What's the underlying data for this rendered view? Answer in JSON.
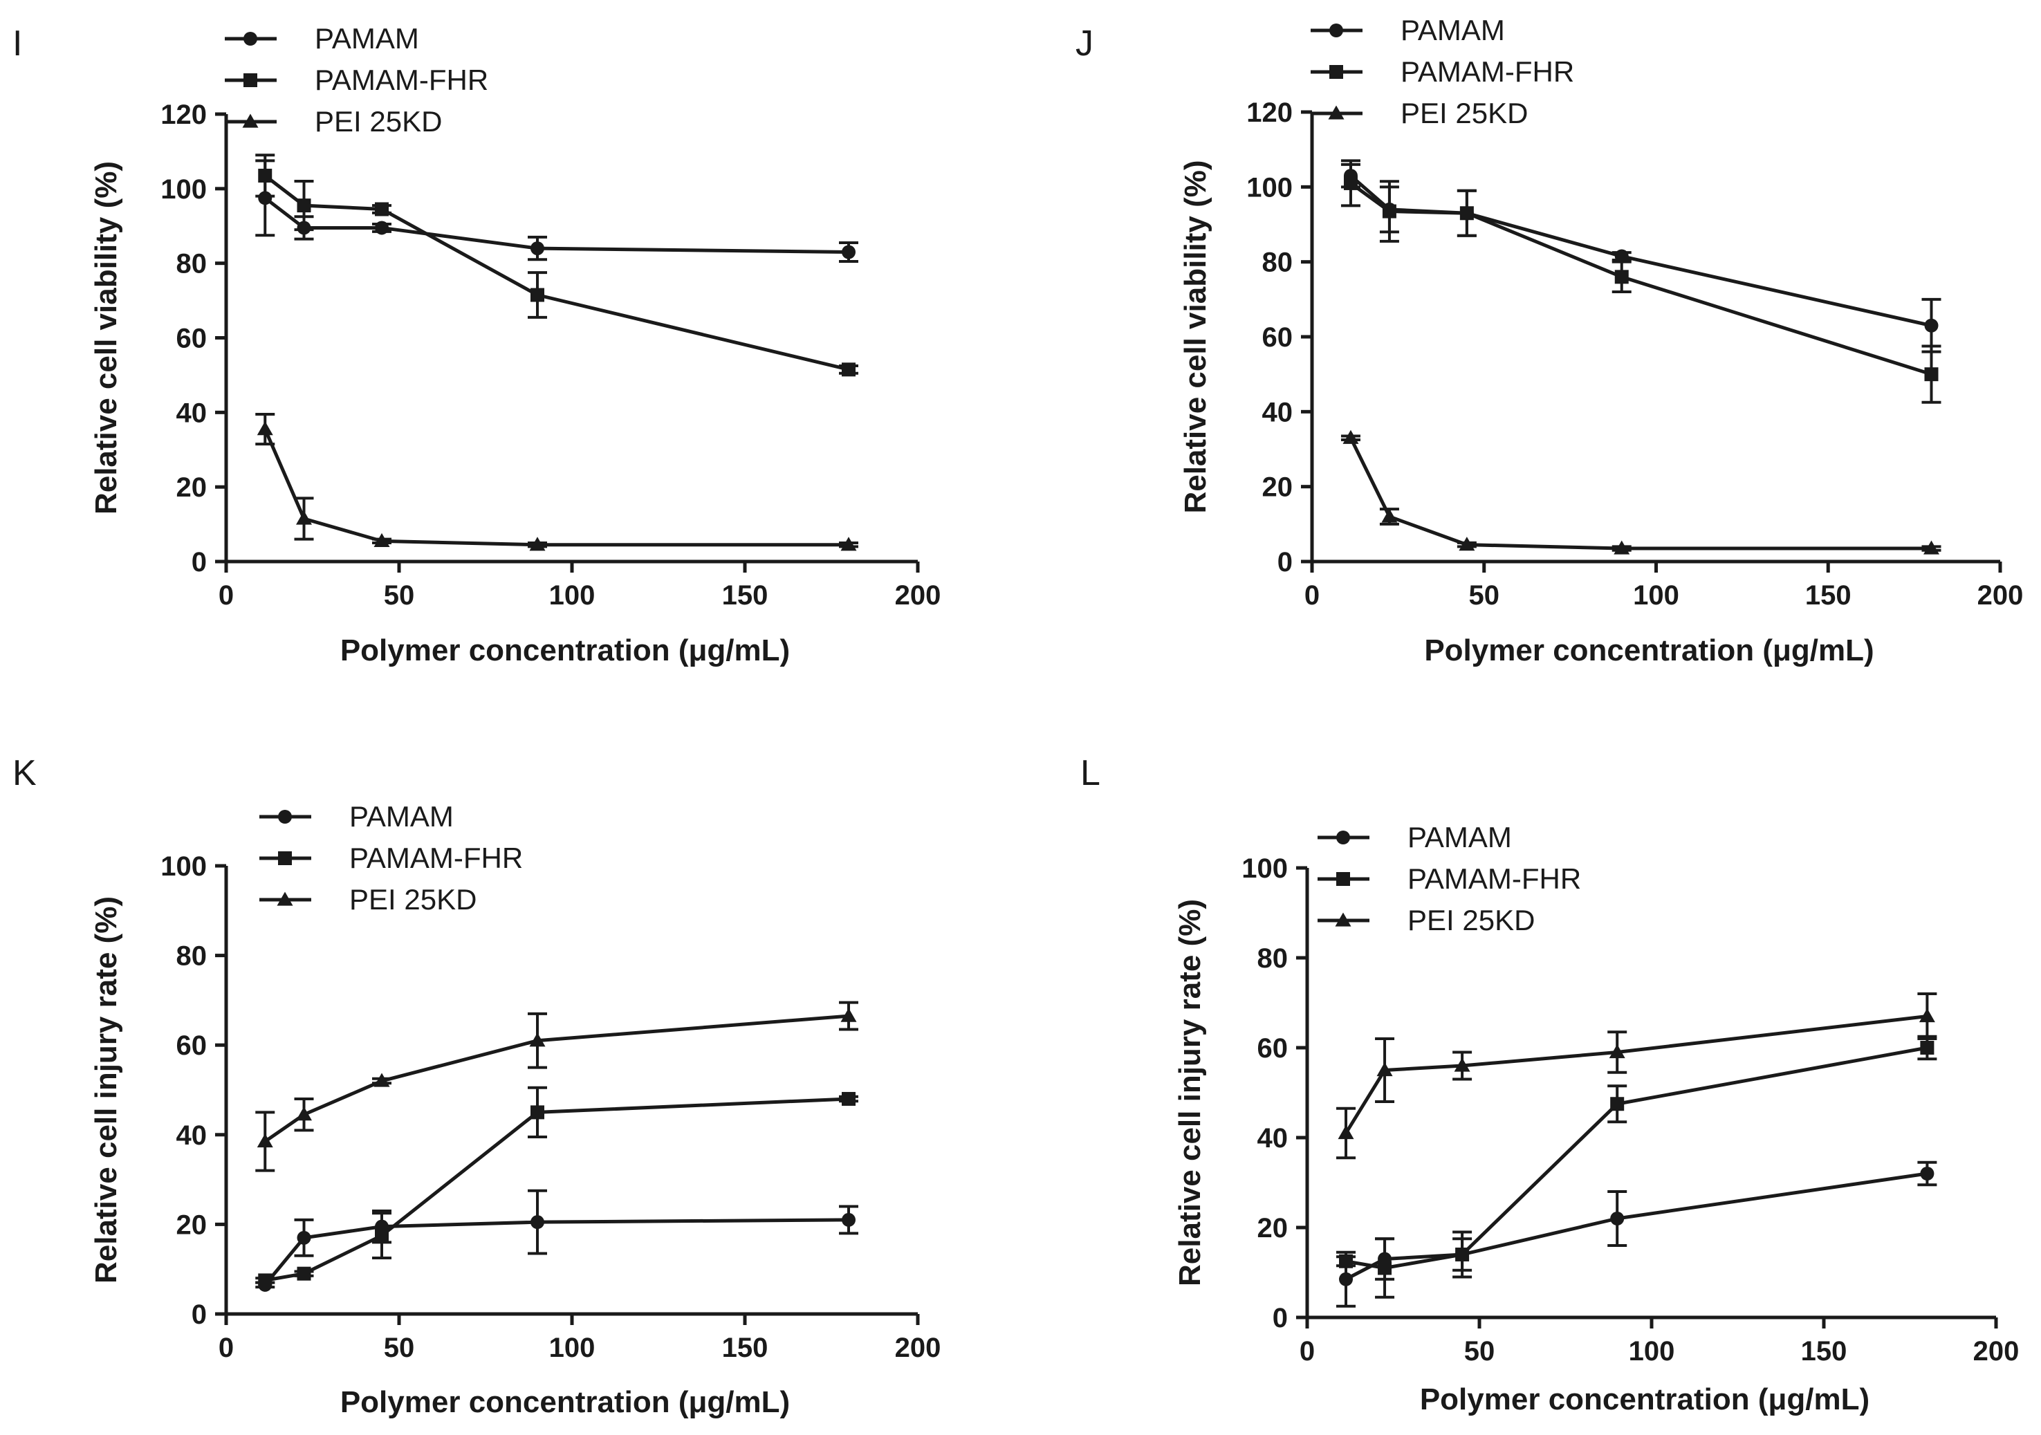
{
  "chart_data": [
    {
      "type": "line",
      "panel": "I",
      "xlabel": "Polymer concentration (μg/mL)",
      "ylabel": "Relative cell viability (%)",
      "xlim": [
        0,
        200
      ],
      "ylim": [
        0,
        120
      ],
      "xticks": [
        "0",
        "50",
        "100",
        "150",
        "200"
      ],
      "yticks": [
        "0",
        "20",
        "40",
        "60",
        "80",
        "100",
        "120"
      ],
      "legend_position": "top-left",
      "x": [
        11.25,
        22.5,
        45,
        90,
        180
      ],
      "series": [
        {
          "name": "PAMAM",
          "marker": "circle",
          "values": [
            97.5,
            89.5,
            89.5,
            84,
            83
          ],
          "errors": [
            10,
            3,
            1,
            3,
            2.5
          ]
        },
        {
          "name": "PAMAM-FHR",
          "marker": "square",
          "values": [
            103.5,
            95.5,
            94.5,
            71.5,
            51.5
          ],
          "errors": [
            5.5,
            6.5,
            1,
            6,
            1
          ]
        },
        {
          "name": "PEI 25KD",
          "marker": "triangle",
          "values": [
            35.5,
            11.5,
            5.5,
            4.5,
            4.5
          ],
          "errors": [
            4,
            5.5,
            0.5,
            0.5,
            0.5
          ]
        }
      ]
    },
    {
      "type": "line",
      "panel": "J",
      "xlabel": "Polymer concentration (μg/mL)",
      "ylabel": "Relative cell viability (%)",
      "xlim": [
        0,
        200
      ],
      "ylim": [
        0,
        120
      ],
      "xticks": [
        "0",
        "50",
        "100",
        "150",
        "200"
      ],
      "yticks": [
        "0",
        "20",
        "40",
        "60",
        "80",
        "100",
        "120"
      ],
      "legend_position": "top-left",
      "x": [
        11.25,
        22.5,
        45,
        90,
        180
      ],
      "series": [
        {
          "name": "PAMAM",
          "marker": "circle",
          "values": [
            103,
            94,
            93,
            81.5,
            63
          ],
          "errors": [
            3,
            6,
            6,
            1,
            7
          ]
        },
        {
          "name": "PAMAM-FHR",
          "marker": "square",
          "values": [
            101,
            93.5,
            93,
            76,
            50
          ],
          "errors": [
            6,
            8,
            6,
            4,
            7.5
          ]
        },
        {
          "name": "PEI 25KD",
          "marker": "triangle",
          "values": [
            33,
            12,
            4.5,
            3.5,
            3.5
          ],
          "errors": [
            0.5,
            2,
            0.5,
            0.5,
            0.5
          ]
        }
      ]
    },
    {
      "type": "line",
      "panel": "K",
      "xlabel": "Polymer concentration (μg/mL)",
      "ylabel": "Relative cell injury rate (%)",
      "xlim": [
        0,
        200
      ],
      "ylim": [
        0,
        100
      ],
      "xticks": [
        "0",
        "50",
        "100",
        "150",
        "200"
      ],
      "yticks": [
        "0",
        "20",
        "40",
        "60",
        "80",
        "100"
      ],
      "legend_position": "top-center",
      "x": [
        11.25,
        22.5,
        45,
        90,
        180
      ],
      "series": [
        {
          "name": "PAMAM",
          "marker": "circle",
          "values": [
            6.5,
            17,
            19.5,
            20.5,
            21
          ],
          "errors": [
            0.5,
            4,
            3.5,
            7,
            3
          ]
        },
        {
          "name": "PAMAM-FHR",
          "marker": "square",
          "values": [
            7.5,
            9,
            17.5,
            45,
            48
          ],
          "errors": [
            0.5,
            0.5,
            5,
            5.5,
            0.5
          ]
        },
        {
          "name": "PEI 25KD",
          "marker": "triangle",
          "values": [
            38.5,
            44.5,
            52,
            61,
            66.5
          ],
          "errors": [
            6.5,
            3.5,
            0.5,
            6,
            3
          ]
        }
      ]
    },
    {
      "type": "line",
      "panel": "L",
      "xlabel": "Polymer concentration (μg/mL)",
      "ylabel": "Relative cell injury rate (%)",
      "xlim": [
        0,
        200
      ],
      "ylim": [
        0,
        100
      ],
      "xticks": [
        "0",
        "50",
        "100",
        "150",
        "200"
      ],
      "yticks": [
        "0",
        "20",
        "40",
        "60",
        "80",
        "100"
      ],
      "legend_position": "top-left",
      "x": [
        11.25,
        22.5,
        45,
        90,
        180
      ],
      "series": [
        {
          "name": "PAMAM",
          "marker": "circle",
          "values": [
            8.5,
            13,
            14,
            22,
            32
          ],
          "errors": [
            6,
            4.5,
            5,
            6,
            2.5
          ]
        },
        {
          "name": "PAMAM-FHR",
          "marker": "square",
          "values": [
            12.5,
            11,
            14,
            47.5,
            60
          ],
          "errors": [
            1,
            6.5,
            3.5,
            4,
            2.5
          ]
        },
        {
          "name": "PEI 25KD",
          "marker": "triangle",
          "values": [
            41,
            55,
            56,
            59,
            67
          ],
          "errors": [
            5.5,
            7,
            3,
            4.5,
            5
          ]
        }
      ]
    }
  ]
}
